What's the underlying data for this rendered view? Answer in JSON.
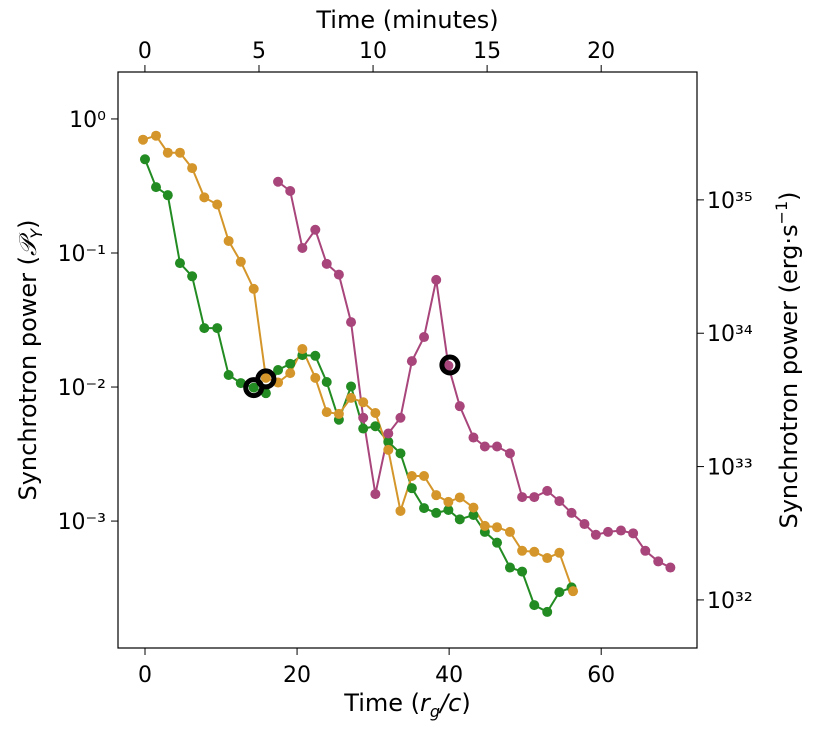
{
  "chart_data": {
    "type": "line",
    "xlabel": [
      "Time (",
      "r",
      "g",
      "/c",
      ")"
    ],
    "ylabel": [
      "Synchrotron power (",
      "𝒫",
      "Y",
      ")"
    ],
    "x2label": "Time (minutes)",
    "y2label": [
      "Synchrotron power (erg·s",
      "−1",
      ")"
    ],
    "yscale": "log",
    "y2scale": "log",
    "xlim": [
      -3.55,
      72.6
    ],
    "xticks": [
      0,
      20,
      40,
      60
    ],
    "x2lim": [
      -1.18,
      24.2
    ],
    "x2ticks": [
      0,
      5,
      10,
      15,
      20
    ],
    "ylim": [
      0.000113,
      2.24
    ],
    "yticks": [
      {
        "value": 1,
        "label": "10⁰"
      },
      {
        "value": 0.1,
        "label": "10⁻¹"
      },
      {
        "value": 0.01,
        "label": "10⁻²"
      },
      {
        "value": 0.001,
        "label": "10⁻³"
      }
    ],
    "y2lim": [
      4.36e+31,
      9.1e+35
    ],
    "y2ticks": [
      {
        "value": 1e+35,
        "label": "10³⁵"
      },
      {
        "value": 1e+34,
        "label": "10³⁴"
      },
      {
        "value": 1e+33,
        "label": "10³³"
      },
      {
        "value": 1e+32,
        "label": "10³²"
      }
    ],
    "series": [
      {
        "color": "#228b22",
        "x": [
          0,
          1.45,
          3.0,
          4.6,
          6.2,
          7.8,
          9.5,
          11.0,
          12.6,
          14.3,
          15.9,
          17.5,
          19.1,
          20.7,
          22.4,
          23.9,
          25.5,
          27.1,
          28.7,
          30.3,
          32.0,
          33.6,
          35.1,
          36.7,
          38.3,
          39.9,
          41.4,
          43.2,
          44.7,
          46.3,
          48.0,
          49.6,
          51.2,
          52.9,
          54.5,
          56.1
        ],
        "values": [
          0.5,
          0.31,
          0.27,
          0.084,
          0.067,
          0.0275,
          0.0275,
          0.0123,
          0.0107,
          0.0099,
          0.009,
          0.0134,
          0.0149,
          0.0173,
          0.0171,
          0.0109,
          0.0057,
          0.0101,
          0.0049,
          0.0051,
          0.0039,
          0.0032,
          0.00176,
          0.00125,
          0.00115,
          0.00121,
          0.00103,
          0.00111,
          0.00083,
          0.00069,
          0.00045,
          0.00042,
          0.000236,
          0.00021,
          0.000295,
          0.00032
        ]
      },
      {
        "color": "#d4962a",
        "x": [
          -0.26,
          1.45,
          3.0,
          4.6,
          6.2,
          7.8,
          9.5,
          11.0,
          12.6,
          14.3,
          15.9,
          17.5,
          19.1,
          20.7,
          22.4,
          23.9,
          25.5,
          27.1,
          28.7,
          30.3,
          32.0,
          33.6,
          35.1,
          36.7,
          38.3,
          39.9,
          41.4,
          43.2,
          44.7,
          46.3,
          48.0,
          49.6,
          51.2,
          52.9,
          54.5,
          56.3
        ],
        "values": [
          0.7,
          0.75,
          0.56,
          0.56,
          0.43,
          0.26,
          0.23,
          0.123,
          0.086,
          0.054,
          0.0117,
          0.0108,
          0.0127,
          0.0192,
          0.0117,
          0.0065,
          0.0063,
          0.0083,
          0.0077,
          0.0064,
          0.0034,
          0.00119,
          0.00217,
          0.00217,
          0.00156,
          0.00139,
          0.0015,
          0.00126,
          0.00092,
          0.0009,
          0.00083,
          0.0006,
          0.00059,
          0.00053,
          0.00058,
          0.0003
        ]
      },
      {
        "color": "#a8457b",
        "x": [
          17.5,
          19.1,
          20.7,
          22.4,
          23.9,
          25.5,
          27.1,
          28.7,
          30.3,
          32.0,
          33.6,
          35.1,
          36.7,
          38.3,
          39.9,
          41.4,
          43.2,
          44.7,
          46.3,
          48.0,
          49.6,
          51.2,
          52.9,
          54.5,
          56.1,
          57.8,
          59.3,
          60.9,
          62.6,
          64.2,
          65.8,
          67.5,
          69.1
        ],
        "values": [
          0.34,
          0.29,
          0.109,
          0.149,
          0.083,
          0.069,
          0.0305,
          0.0059,
          0.00159,
          0.0045,
          0.0059,
          0.0156,
          0.0236,
          0.063,
          0.0144,
          0.0072,
          0.0042,
          0.0036,
          0.0036,
          0.0032,
          0.00151,
          0.00151,
          0.00168,
          0.00141,
          0.00115,
          0.00095,
          0.00079,
          0.00083,
          0.00085,
          0.00081,
          0.0006,
          0.0005,
          0.00045
        ]
      }
    ],
    "highlights": {
      "x": [
        14.3,
        15.9,
        40.1
      ],
      "values": [
        0.0099,
        0.0115,
        0.0146
      ]
    }
  }
}
